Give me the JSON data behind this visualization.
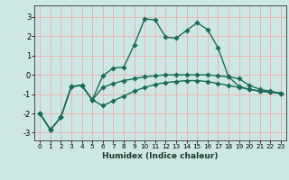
{
  "xlabel": "Humidex (Indice chaleur)",
  "background_color": "#cde8e4",
  "grid_color": "#e8b4b4",
  "line_color": "#1a6b5a",
  "x_min": -0.5,
  "x_max": 23.5,
  "y_min": -3.4,
  "y_max": 3.6,
  "x_ticks": [
    0,
    1,
    2,
    3,
    4,
    5,
    6,
    7,
    8,
    9,
    10,
    11,
    12,
    13,
    14,
    15,
    16,
    17,
    18,
    19,
    20,
    21,
    22,
    23
  ],
  "y_ticks": [
    -3,
    -2,
    -1,
    0,
    1,
    2,
    3
  ],
  "line1_x": [
    0,
    1,
    2,
    3,
    4,
    5,
    6,
    7,
    8,
    9,
    10,
    11,
    12,
    13,
    14,
    15,
    16,
    17,
    18,
    19,
    20,
    21,
    22,
    23
  ],
  "line1_y": [
    -2.0,
    -2.85,
    -2.2,
    -0.6,
    -0.55,
    -1.3,
    -0.05,
    0.35,
    0.4,
    1.55,
    2.9,
    2.85,
    1.95,
    1.9,
    2.3,
    2.7,
    2.35,
    1.4,
    -0.1,
    -0.6,
    -0.75,
    -0.85,
    -0.9,
    -0.95
  ],
  "line2_x": [
    0,
    1,
    2,
    3,
    4,
    5,
    6,
    7,
    8,
    9,
    10,
    11,
    12,
    13,
    14,
    15,
    16,
    17,
    18,
    19,
    20,
    21,
    22,
    23
  ],
  "line2_y": [
    -2.0,
    -2.85,
    -2.2,
    -0.6,
    -0.55,
    -1.3,
    -0.65,
    -0.45,
    -0.3,
    -0.2,
    -0.1,
    -0.05,
    0.0,
    0.0,
    0.0,
    0.0,
    0.0,
    -0.05,
    -0.1,
    -0.2,
    -0.55,
    -0.75,
    -0.85,
    -0.95
  ],
  "line3_x": [
    0,
    1,
    2,
    3,
    4,
    5,
    6,
    7,
    8,
    9,
    10,
    11,
    12,
    13,
    14,
    15,
    16,
    17,
    18,
    19,
    20,
    21,
    22,
    23
  ],
  "line3_y": [
    -2.0,
    -2.85,
    -2.2,
    -0.6,
    -0.55,
    -1.3,
    -1.6,
    -1.35,
    -1.1,
    -0.85,
    -0.65,
    -0.5,
    -0.4,
    -0.35,
    -0.3,
    -0.3,
    -0.35,
    -0.45,
    -0.55,
    -0.65,
    -0.75,
    -0.85,
    -0.9,
    -0.95
  ]
}
